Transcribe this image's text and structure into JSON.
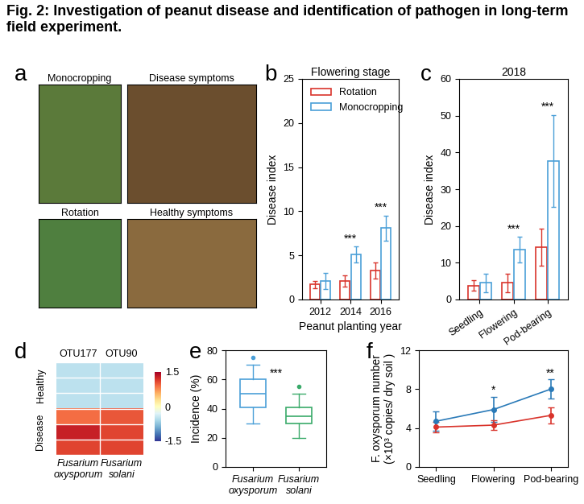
{
  "title": "Fig. 2: Investigation of peanut disease and identification of pathogen in long-term field experiment.",
  "chart_data": [
    {
      "type": "image_grid",
      "panel": "a",
      "images": [
        "Monocropping",
        "Disease symptoms",
        "Rotation",
        "Healthy symptoms"
      ]
    },
    {
      "type": "bar",
      "panel": "b",
      "title": "Flowering stage",
      "x_label": "Peanut planting year",
      "y_label": "Disease index",
      "categories": [
        "2012",
        "2014",
        "2016"
      ],
      "series": [
        {
          "name": "Rotation",
          "color": "#d9332b",
          "values": [
            1.7,
            2.1,
            3.3
          ],
          "errors": [
            0.4,
            0.6,
            0.9
          ]
        },
        {
          "name": "Monocropping",
          "color": "#4a9fd8",
          "values": [
            2.1,
            5.1,
            8.1
          ],
          "errors": [
            0.9,
            0.9,
            1.4
          ]
        }
      ],
      "ylim": [
        0,
        25
      ],
      "yticks": [
        0,
        5,
        10,
        15,
        20,
        25
      ],
      "legend": "upper left",
      "annotations": [
        {
          "category": "2014",
          "text": "***"
        },
        {
          "category": "2016",
          "text": "***"
        }
      ]
    },
    {
      "type": "bar",
      "panel": "c",
      "title": "2018",
      "y_label": "Disease index",
      "categories": [
        "Seedling",
        "Flowering",
        "Pod-bearing"
      ],
      "series": [
        {
          "name": "Rotation",
          "color": "#d9332b",
          "values": [
            3.8,
            4.5,
            14.3
          ],
          "errors": [
            1.5,
            2.5,
            5.0
          ]
        },
        {
          "name": "Monocropping",
          "color": "#4a9fd8",
          "values": [
            4.5,
            13.5,
            37.7
          ],
          "errors": [
            2.5,
            3.5,
            12.5
          ]
        }
      ],
      "ylim": [
        0,
        60
      ],
      "yticks": [
        0,
        10,
        20,
        30,
        40,
        50,
        60
      ],
      "annotations": [
        {
          "category": "Flowering",
          "text": "***"
        },
        {
          "category": "Pod-bearing",
          "text": "***"
        }
      ]
    },
    {
      "type": "heatmap",
      "panel": "d",
      "columns": [
        "OTU177",
        "OTU90"
      ],
      "column_labels": [
        "Fusarium oxysporum",
        "Fusarium solani"
      ],
      "groups": [
        {
          "name": "Healthy",
          "cells": [
            [
              -0.5,
              -0.5
            ],
            [
              -0.5,
              -0.5
            ],
            [
              -0.5,
              -0.5
            ]
          ]
        },
        {
          "name": "Disease",
          "cells": [
            [
              0.9,
              1.0
            ],
            [
              1.3,
              1.1
            ],
            [
              1.1,
              1.1
            ]
          ]
        }
      ],
      "colorbar": {
        "range": [
          -1.5,
          1.5
        ],
        "ticks": [
          -1.5,
          0,
          1.5
        ]
      },
      "tick_labels": false
    },
    {
      "type": "box",
      "panel": "e",
      "y_label": "Incidence (%)",
      "categories": [
        "Fusarium oxysporum",
        "Fusarium solani"
      ],
      "colors": [
        "#4a9fd8",
        "#3aaa6a"
      ],
      "boxes": [
        {
          "min": 30,
          "q1": 41,
          "median": 50,
          "q3": 60,
          "max": 70,
          "outliers": [
            75
          ]
        },
        {
          "min": 20,
          "q1": 30,
          "median": 34.5,
          "q3": 41,
          "max": 50,
          "outliers": [
            55
          ]
        }
      ],
      "ylim": [
        0,
        80
      ],
      "yticks": [
        0,
        20,
        40,
        60,
        80
      ],
      "annotations": [
        {
          "text": "***"
        }
      ]
    },
    {
      "type": "line",
      "panel": "f",
      "y_label": "F. oxysporum number\n(×10³ copies/ dry soil )",
      "categories": [
        "Seedling",
        "Flowering",
        "Pod-bearing"
      ],
      "series": [
        {
          "color": "#2a7ab8",
          "marker": "o",
          "values": [
            4.7,
            5.9,
            8.0
          ],
          "errors": [
            1.0,
            1.3,
            1.0
          ]
        },
        {
          "color": "#d9332b",
          "marker": "o",
          "values": [
            4.1,
            4.3,
            5.3
          ],
          "errors": [
            0.5,
            0.5,
            0.8
          ]
        }
      ],
      "ylim": [
        0,
        12
      ],
      "yticks": [
        0,
        4,
        8,
        12
      ],
      "annotations": [
        {
          "category": "Flowering",
          "text": "*"
        },
        {
          "category": "Pod-bearing",
          "text": "**"
        }
      ]
    }
  ]
}
